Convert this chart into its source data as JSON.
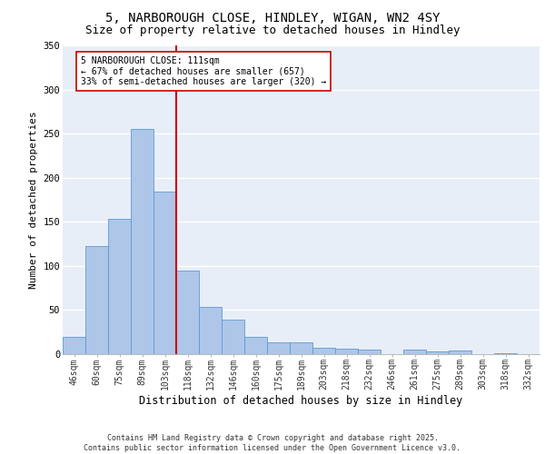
{
  "title_line1": "5, NARBOROUGH CLOSE, HINDLEY, WIGAN, WN2 4SY",
  "title_line2": "Size of property relative to detached houses in Hindley",
  "xlabel": "Distribution of detached houses by size in Hindley",
  "ylabel": "Number of detached properties",
  "categories": [
    "46sqm",
    "60sqm",
    "75sqm",
    "89sqm",
    "103sqm",
    "118sqm",
    "132sqm",
    "146sqm",
    "160sqm",
    "175sqm",
    "189sqm",
    "203sqm",
    "218sqm",
    "232sqm",
    "246sqm",
    "261sqm",
    "275sqm",
    "289sqm",
    "303sqm",
    "318sqm",
    "332sqm"
  ],
  "values": [
    20,
    122,
    153,
    255,
    184,
    95,
    54,
    39,
    20,
    13,
    13,
    7,
    6,
    5,
    0,
    5,
    3,
    4,
    0,
    1,
    0
  ],
  "bar_color": "#aec6e8",
  "bar_edge_color": "#5b9bd5",
  "vline_x": 4.5,
  "vline_color": "#cc0000",
  "annotation_text": "5 NARBOROUGH CLOSE: 111sqm\n← 67% of detached houses are smaller (657)\n33% of semi-detached houses are larger (320) →",
  "annotation_box_color": "#ffffff",
  "annotation_box_edge": "#cc0000",
  "ylim": [
    0,
    350
  ],
  "yticks": [
    0,
    50,
    100,
    150,
    200,
    250,
    300,
    350
  ],
  "background_color": "#e8eef8",
  "footer_text": "Contains HM Land Registry data © Crown copyright and database right 2025.\nContains public sector information licensed under the Open Government Licence v3.0.",
  "grid_color": "#ffffff",
  "title_fontsize": 10,
  "subtitle_fontsize": 9,
  "tick_fontsize": 7,
  "xlabel_fontsize": 8.5,
  "ylabel_fontsize": 8,
  "footer_fontsize": 6,
  "annot_fontsize": 7
}
